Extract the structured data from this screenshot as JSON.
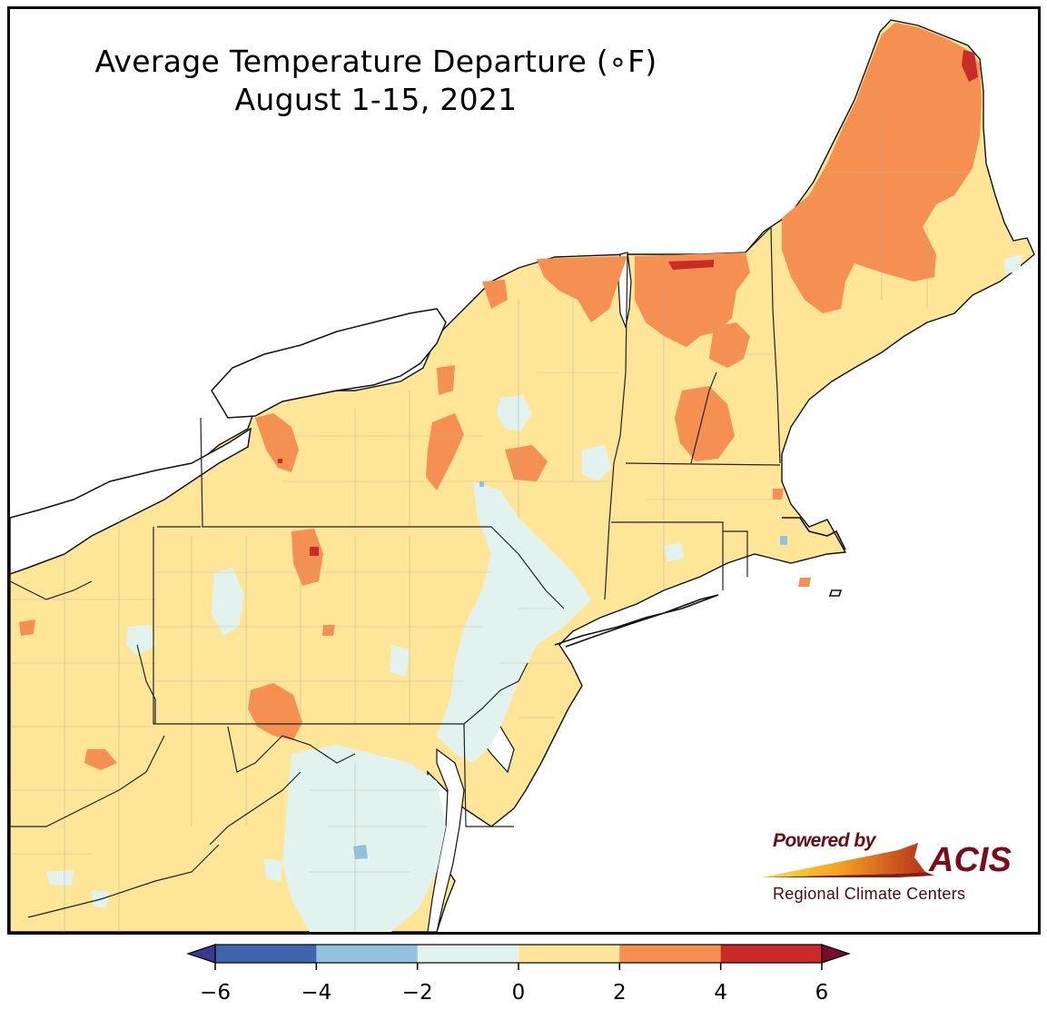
{
  "title": {
    "line1": "Average Temperature Departure (∘F)",
    "line2": "August 1-15, 2021"
  },
  "logo": {
    "powered_by": "Powered by",
    "acis": "ACIS",
    "subtitle": "Regional Climate Centers"
  },
  "colorbar": {
    "ticks": [
      "−6",
      "−4",
      "−2",
      "0",
      "2",
      "4",
      "6"
    ],
    "bins": [
      {
        "range": "-6 to -4",
        "color": "#3d64ad"
      },
      {
        "range": "-4 to -2",
        "color": "#92c2df"
      },
      {
        "range": "-2 to 0",
        "color": "#e2f3ef"
      },
      {
        "range": "0 to 2",
        "color": "#fee597"
      },
      {
        "range": "2 to 4",
        "color": "#f68f52"
      },
      {
        "range": "4 to 6",
        "color": "#cb2a2a"
      }
    ],
    "under_color": "#3b3a8e",
    "over_color": "#7a0b2c"
  },
  "map": {
    "region": "Northeast United States",
    "base_category": "0 to 2",
    "water_color": "#ffffff",
    "county_line_color": "#b5ae9c",
    "state_line_color": "#222222"
  }
}
